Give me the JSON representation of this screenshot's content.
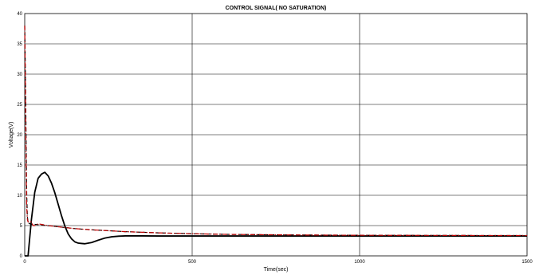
{
  "chart_data": {
    "type": "line",
    "title": "CONTROL SIGNAL( NO SATURATION)",
    "xlabel": "Time(sec)",
    "ylabel": "Voltage(V)",
    "xlim": [
      0,
      1500
    ],
    "ylim": [
      0,
      40
    ],
    "xticks": [
      0,
      500,
      1000,
      1500
    ],
    "yticks": [
      0,
      5,
      10,
      15,
      20,
      25,
      30,
      35,
      40
    ],
    "grid": true,
    "colors": {
      "solid": "#000000",
      "dashed": "#000000",
      "dashdot": "#c00000"
    },
    "series": [
      {
        "style": "solid",
        "x": [
          0,
          5,
          10,
          20,
          30,
          40,
          50,
          60,
          70,
          80,
          90,
          100,
          110,
          120,
          130,
          140,
          150,
          160,
          170,
          180,
          200,
          220,
          240,
          260,
          280,
          300,
          350,
          400,
          500,
          600,
          800,
          1000,
          1200,
          1500
        ],
        "y": [
          0,
          0,
          0,
          6,
          10.5,
          12.8,
          13.5,
          13.8,
          13.2,
          12,
          10.4,
          8.5,
          6.6,
          4.9,
          3.6,
          2.8,
          2.3,
          2.1,
          2.05,
          2.0,
          2.2,
          2.6,
          2.95,
          3.15,
          3.25,
          3.3,
          3.3,
          3.28,
          3.28,
          3.28,
          3.28,
          3.28,
          3.28,
          3.28
        ]
      },
      {
        "style": "dashed",
        "x": [
          0,
          2,
          4,
          6,
          8,
          10,
          15,
          20,
          30,
          50,
          100,
          150,
          200,
          300,
          400,
          500,
          600,
          800,
          1000,
          1200,
          1500
        ],
        "y": [
          38,
          30,
          20,
          10,
          6.5,
          5.5,
          5.3,
          5.2,
          5.2,
          5.1,
          4.8,
          4.5,
          4.3,
          4.0,
          3.8,
          3.65,
          3.55,
          3.45,
          3.4,
          3.38,
          3.35
        ]
      },
      {
        "style": "dashdot",
        "x": [
          0,
          2,
          4,
          6,
          8,
          10,
          15,
          20,
          25,
          30,
          40,
          50,
          70,
          100,
          150,
          200,
          300,
          400,
          500,
          600,
          800,
          1000,
          1200,
          1500
        ],
        "y": [
          38,
          28,
          16,
          8,
          6,
          5.6,
          5.7,
          5.6,
          5.0,
          5.0,
          5.3,
          5.2,
          5.0,
          4.8,
          4.5,
          4.3,
          4.0,
          3.8,
          3.65,
          3.55,
          3.45,
          3.4,
          3.38,
          3.35
        ]
      }
    ]
  }
}
